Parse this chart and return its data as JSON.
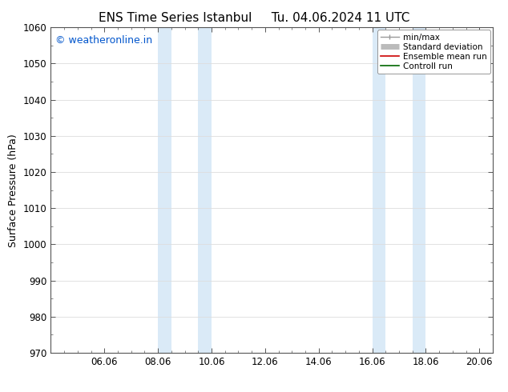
{
  "title_left": "ENS Time Series Istanbul",
  "title_right": "Tu. 04.06.2024 11 UTC",
  "ylabel": "Surface Pressure (hPa)",
  "ylim": [
    970,
    1060
  ],
  "yticks": [
    970,
    980,
    990,
    1000,
    1010,
    1020,
    1030,
    1040,
    1050,
    1060
  ],
  "xlim": [
    0,
    16
  ],
  "xtick_labels": [
    "06.06",
    "08.06",
    "10.06",
    "12.06",
    "14.06",
    "16.06",
    "18.06",
    "20.06"
  ],
  "xtick_positions": [
    2,
    4,
    6,
    8,
    10,
    12,
    14,
    16
  ],
  "shade_bands": [
    {
      "x_start": 4.0,
      "x_end": 4.5
    },
    {
      "x_start": 5.5,
      "x_end": 6.0
    },
    {
      "x_start": 12.0,
      "x_end": 12.5
    },
    {
      "x_start": 13.5,
      "x_end": 14.0
    }
  ],
  "shade_color": "#daeaf7",
  "watermark_text": "© weatheronline.in",
  "watermark_color": "#0055cc",
  "watermark_fontsize": 9,
  "legend_items": [
    {
      "label": "min/max",
      "color": "#999999",
      "lw": 1.0
    },
    {
      "label": "Standard deviation",
      "color": "#bbbbbb",
      "lw": 5
    },
    {
      "label": "Ensemble mean run",
      "color": "#cc0000",
      "lw": 1.2
    },
    {
      "label": "Controll run",
      "color": "#006600",
      "lw": 1.2
    }
  ],
  "background_color": "#ffffff",
  "grid_color": "#dddddd",
  "title_fontsize": 11,
  "ylabel_fontsize": 9,
  "tick_fontsize": 8.5,
  "legend_fontsize": 7.5
}
